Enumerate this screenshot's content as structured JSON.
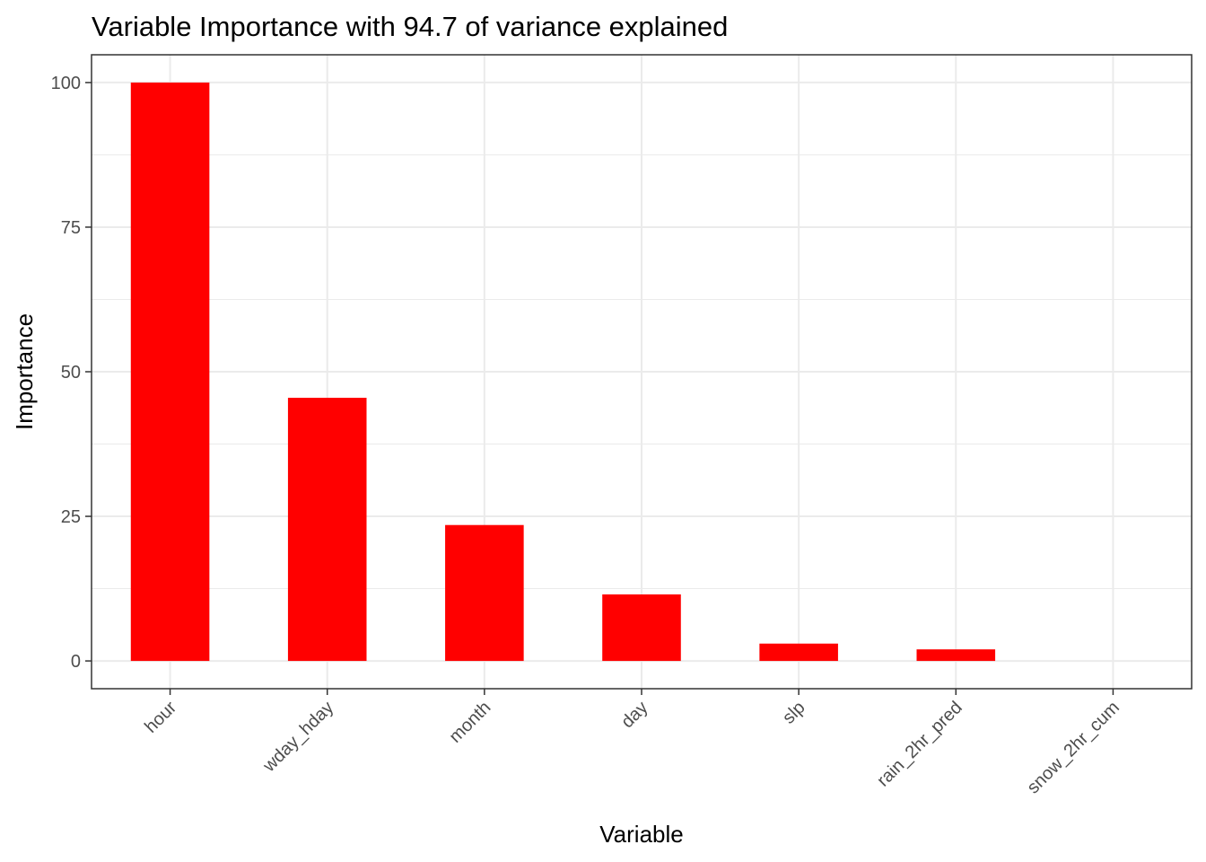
{
  "chart_data": {
    "type": "bar",
    "title": "Variable Importance with 94.7 of variance explained",
    "xlabel": "Variable",
    "ylabel": "Importance",
    "categories": [
      "hour",
      "wday_hday",
      "month",
      "day",
      "slp",
      "rain_2hr_pred",
      "snow_2hr_cum"
    ],
    "values": [
      100,
      45.5,
      23.5,
      11.5,
      3.0,
      2.0,
      0
    ],
    "yticks": [
      0,
      25,
      50,
      75,
      100
    ],
    "ylim": [
      -4.8,
      104.8
    ],
    "grid": true,
    "bar_color": "#ff0000"
  }
}
